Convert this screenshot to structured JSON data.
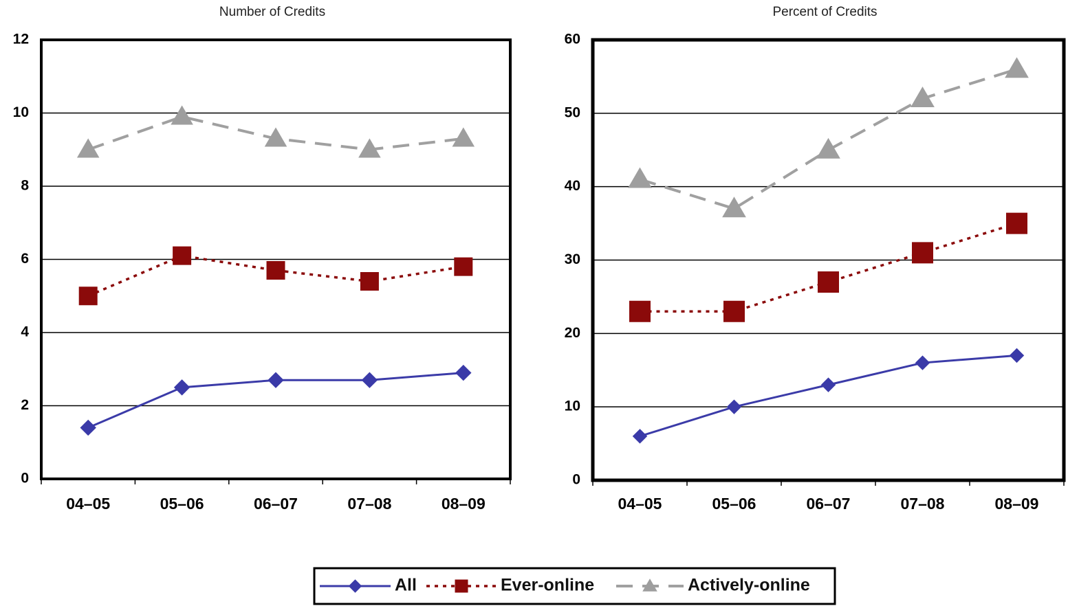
{
  "chart_data": [
    {
      "type": "line",
      "title": "Number of Credits",
      "categories": [
        "04–05",
        "05–06",
        "06–07",
        "07–08",
        "08–09"
      ],
      "ylim": [
        0,
        12
      ],
      "yticks": [
        0,
        2,
        4,
        6,
        8,
        10,
        12
      ],
      "grid": true,
      "series": [
        {
          "name": "All",
          "color": "#3b3ba8",
          "style": "solid",
          "marker": "diamond",
          "values": [
            1.4,
            2.5,
            2.7,
            2.7,
            2.9
          ]
        },
        {
          "name": "Ever-online",
          "color": "#8b0a0a",
          "style": "dotted",
          "marker": "square",
          "values": [
            5.0,
            6.1,
            5.7,
            5.4,
            5.8
          ]
        },
        {
          "name": "Actively-online",
          "color": "#a0a0a0",
          "style": "dashed",
          "marker": "triangle",
          "values": [
            9.0,
            9.9,
            9.3,
            9.0,
            9.3
          ]
        }
      ]
    },
    {
      "type": "line",
      "title": "Percent of Credits",
      "categories": [
        "04–05",
        "05–06",
        "06–07",
        "07–08",
        "08–09"
      ],
      "ylim": [
        0,
        60
      ],
      "yticks": [
        0,
        10,
        20,
        30,
        40,
        50,
        60
      ],
      "grid": true,
      "series": [
        {
          "color": "#3b3ba8",
          "style": "solid",
          "marker": "diamond",
          "values": [
            6,
            10,
            13,
            16,
            17
          ]
        },
        {
          "color": "#8b0a0a",
          "style": "dotted",
          "marker": "square",
          "values": [
            23,
            23,
            27,
            31,
            35
          ]
        },
        {
          "color": "#a0a0a0",
          "style": "dashed",
          "marker": "triangle",
          "values": [
            41,
            37,
            45,
            52,
            56
          ]
        }
      ]
    }
  ]
}
